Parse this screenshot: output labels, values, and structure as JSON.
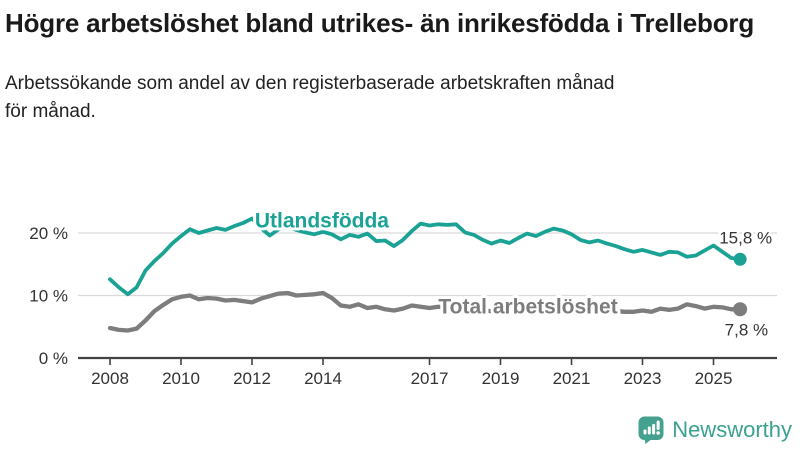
{
  "header": {
    "title_lines": [
      "Högre arbetslöshet bland utrikes- än inrikesfödda i",
      "Trelleborg"
    ],
    "subtitle_lines": [
      "Arbetssökande som andel av den registerbaserade arbetskraften månad",
      "för månad."
    ]
  },
  "colors": {
    "series_foreign": "#1aa294",
    "series_total": "#7d7d7d",
    "grid": "#d9d9d9",
    "axis": "#424242",
    "tick_text": "#333333",
    "annotation_text": "#333333",
    "brand_teal": "#3ba192"
  },
  "chart_data": {
    "type": "line",
    "title": "Högre arbetslöshet bland utrikes- än inrikesfödda i Trelleborg",
    "subtitle": "Arbetssökande som andel av den registerbaserade arbetskraften månad för månad.",
    "unit": "%",
    "grid": "horizontal-only",
    "legend_position": "inline-labels",
    "x_axis": {
      "ticks": [
        {
          "value": 2008,
          "label": "2008"
        },
        {
          "value": 2010,
          "label": "2010"
        },
        {
          "value": 2012,
          "label": "2012"
        },
        {
          "value": 2014,
          "label": "2014"
        },
        {
          "value": 2017,
          "label": "2017"
        },
        {
          "value": 2019,
          "label": "2019"
        },
        {
          "value": 2021,
          "label": "2021"
        },
        {
          "value": 2023,
          "label": "2023"
        },
        {
          "value": 2025,
          "label": "2025"
        }
      ],
      "range": [
        2008,
        2026
      ]
    },
    "y_axis": {
      "ticks": [
        {
          "value": 0,
          "label": "0 %"
        },
        {
          "value": 10,
          "label": "10 %"
        },
        {
          "value": 20,
          "label": "20 %"
        }
      ],
      "range": [
        0,
        24
      ]
    },
    "x": [
      2008.0,
      2008.25,
      2008.5,
      2008.75,
      2009.0,
      2009.25,
      2009.5,
      2009.75,
      2010.0,
      2010.25,
      2010.5,
      2010.75,
      2011.0,
      2011.25,
      2011.5,
      2011.75,
      2012.0,
      2012.25,
      2012.5,
      2012.75,
      2013.0,
      2013.25,
      2013.5,
      2013.75,
      2014.0,
      2014.25,
      2014.5,
      2014.75,
      2015.0,
      2015.25,
      2015.5,
      2015.75,
      2016.0,
      2016.25,
      2016.5,
      2016.75,
      2017.0,
      2017.25,
      2017.5,
      2017.75,
      2018.0,
      2018.25,
      2018.5,
      2018.75,
      2019.0,
      2019.25,
      2019.5,
      2019.75,
      2020.0,
      2020.25,
      2020.5,
      2020.75,
      2021.0,
      2021.25,
      2021.5,
      2021.75,
      2022.0,
      2022.25,
      2022.5,
      2022.75,
      2023.0,
      2023.25,
      2023.5,
      2023.75,
      2024.0,
      2024.25,
      2024.5,
      2024.75,
      2025.0,
      2025.25,
      2025.5,
      2025.75
    ],
    "series": [
      {
        "id": "utlandsfodda",
        "name": "Utlandsfödda",
        "color": "#1aa294",
        "end_label": "15,8 %",
        "end_value": 15.8,
        "values": [
          12.6,
          11.3,
          10.2,
          11.3,
          14.0,
          15.5,
          16.8,
          18.3,
          19.5,
          20.6,
          20.0,
          20.4,
          20.8,
          20.5,
          21.1,
          21.6,
          22.3,
          20.8,
          19.6,
          20.6,
          21.0,
          20.5,
          20.1,
          19.8,
          20.2,
          19.8,
          19.0,
          19.7,
          19.4,
          19.9,
          18.7,
          18.8,
          17.9,
          18.9,
          20.3,
          21.5,
          21.2,
          21.4,
          21.3,
          21.4,
          20.1,
          19.7,
          18.9,
          18.3,
          18.8,
          18.4,
          19.2,
          19.9,
          19.5,
          20.2,
          20.7,
          20.4,
          19.8,
          18.9,
          18.5,
          18.8,
          18.3,
          17.9,
          17.4,
          17.0,
          17.3,
          16.9,
          16.5,
          17.0,
          16.9,
          16.2,
          16.4,
          17.2,
          18.0,
          17.0,
          16.0,
          15.8
        ]
      },
      {
        "id": "total",
        "name": "Total arbetslöshet",
        "color": "#7d7d7d",
        "end_label": "7,8 %",
        "end_value": 7.8,
        "values": [
          4.8,
          4.5,
          4.4,
          4.7,
          6.0,
          7.5,
          8.5,
          9.4,
          9.8,
          10.0,
          9.4,
          9.6,
          9.5,
          9.2,
          9.3,
          9.1,
          8.9,
          9.5,
          9.9,
          10.3,
          10.4,
          10.0,
          10.1,
          10.2,
          10.4,
          9.6,
          8.4,
          8.2,
          8.6,
          8.0,
          8.2,
          7.8,
          7.6,
          7.9,
          8.4,
          8.2,
          8.0,
          8.2,
          8.0,
          7.9,
          7.8,
          7.7,
          7.6,
          7.5,
          7.5,
          7.6,
          7.7,
          7.9,
          8.1,
          8.6,
          8.8,
          8.6,
          8.4,
          8.2,
          8.0,
          7.8,
          7.7,
          7.5,
          7.4,
          7.4,
          7.6,
          7.4,
          7.9,
          7.7,
          7.9,
          8.6,
          8.3,
          7.9,
          8.2,
          8.1,
          7.8,
          7.8
        ]
      }
    ]
  },
  "footer": {
    "brand": "Newsworthy"
  }
}
